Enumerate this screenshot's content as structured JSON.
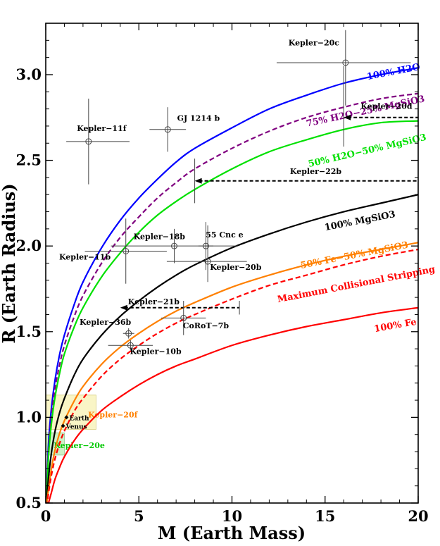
{
  "chart_data": {
    "type": "line",
    "title": "",
    "xlabel": "M (Earth Mass)",
    "ylabel": "R (Earth Radius)",
    "xlim": [
      0,
      20
    ],
    "ylim": [
      0.5,
      3.3
    ],
    "x_ticks": [
      0,
      5,
      10,
      15,
      20
    ],
    "x_tick_labels": [
      "0",
      "5",
      "10",
      "15",
      "20"
    ],
    "y_ticks": [
      0.5,
      1.0,
      1.5,
      2.0,
      2.5,
      3.0
    ],
    "y_tick_labels": [
      "0.5",
      "1.0",
      "1.5",
      "2.0",
      "2.5",
      "3.0"
    ],
    "series": [
      {
        "name": "100% H2O",
        "color": "#0000ff",
        "dash": "solid",
        "x": [
          0.05,
          0.15,
          0.3,
          0.5,
          0.75,
          1,
          1.5,
          2,
          3,
          4,
          5,
          6,
          7,
          8,
          10,
          12,
          14,
          16,
          18,
          20
        ],
        "y": [
          0.55,
          0.85,
          1.05,
          1.22,
          1.37,
          1.48,
          1.65,
          1.79,
          1.99,
          2.15,
          2.28,
          2.39,
          2.49,
          2.57,
          2.69,
          2.8,
          2.88,
          2.95,
          3.0,
          3.04
        ],
        "label_xy": [
          18.7,
          3.0
        ],
        "label_angle": -11
      },
      {
        "name": "75% H2O−25% MgSiO3",
        "color": "#800080",
        "dash": "dashed",
        "x": [
          0.05,
          0.15,
          0.3,
          0.5,
          0.75,
          1,
          1.5,
          2,
          3,
          4,
          5,
          6,
          7,
          8,
          10,
          12,
          14,
          16,
          18,
          20
        ],
        "y": [
          0.53,
          0.81,
          1.0,
          1.17,
          1.31,
          1.42,
          1.58,
          1.71,
          1.9,
          2.05,
          2.17,
          2.28,
          2.37,
          2.45,
          2.57,
          2.67,
          2.75,
          2.81,
          2.86,
          2.89
        ],
        "label_xy": [
          17.2,
          2.77
        ],
        "label_angle": -12
      },
      {
        "name": "50% H2O−50% MgSiO3",
        "color": "#00e000",
        "dash": "solid",
        "x": [
          0.05,
          0.15,
          0.3,
          0.5,
          0.75,
          1,
          1.5,
          2,
          3,
          4,
          5,
          6,
          7,
          8,
          10,
          12,
          14,
          16,
          18,
          20
        ],
        "y": [
          0.52,
          0.78,
          0.96,
          1.12,
          1.26,
          1.37,
          1.52,
          1.64,
          1.82,
          1.96,
          2.08,
          2.18,
          2.26,
          2.33,
          2.45,
          2.55,
          2.62,
          2.68,
          2.72,
          2.73
        ],
        "label_xy": [
          17.3,
          2.54
        ],
        "label_angle": -13
      },
      {
        "name": "100% MgSiO3",
        "color": "#000000",
        "dash": "solid",
        "x": [
          0.05,
          0.15,
          0.3,
          0.5,
          0.75,
          1,
          1.5,
          2,
          3,
          4,
          5,
          6,
          7,
          8,
          10,
          12,
          14,
          16,
          18,
          20
        ],
        "y": [
          0.5,
          0.65,
          0.79,
          0.92,
          1.03,
          1.11,
          1.24,
          1.34,
          1.48,
          1.59,
          1.68,
          1.76,
          1.83,
          1.89,
          1.99,
          2.07,
          2.14,
          2.2,
          2.25,
          2.3
        ],
        "label_xy": [
          16.9,
          2.13
        ],
        "label_angle": -11
      },
      {
        "name": "50% Fe−50% MgSiO3",
        "color": "#ff8000",
        "dash": "solid",
        "x": [
          0.05,
          0.15,
          0.3,
          0.5,
          0.75,
          1,
          1.5,
          2,
          3,
          4,
          5,
          6,
          7,
          8,
          10,
          12,
          14,
          16,
          18,
          20
        ],
        "y": [
          0.5,
          0.58,
          0.7,
          0.81,
          0.91,
          0.98,
          1.09,
          1.18,
          1.31,
          1.41,
          1.49,
          1.56,
          1.62,
          1.67,
          1.76,
          1.83,
          1.89,
          1.94,
          1.98,
          2.02
        ],
        "label_xy": [
          16.6,
          1.93
        ],
        "label_angle": -11
      },
      {
        "name": "Maximum Collisional Stripping",
        "color": "#ff0000",
        "dash": "dashed",
        "x": [
          0.05,
          0.15,
          0.3,
          0.5,
          0.75,
          1,
          1.5,
          2,
          3,
          4,
          5,
          6,
          7,
          8,
          10,
          12,
          14,
          16,
          18,
          20
        ],
        "y": [
          0.48,
          0.56,
          0.66,
          0.76,
          0.85,
          0.92,
          1.03,
          1.11,
          1.24,
          1.34,
          1.42,
          1.49,
          1.55,
          1.6,
          1.69,
          1.77,
          1.83,
          1.89,
          1.94,
          1.98
        ],
        "label_xy": [
          16.7,
          1.76
        ],
        "label_angle": -11
      },
      {
        "name": "100% Fe",
        "color": "#ff0000",
        "dash": "solid",
        "x": [
          0.05,
          0.15,
          0.3,
          0.5,
          0.75,
          1,
          1.5,
          2,
          3,
          4,
          5,
          6,
          7,
          8,
          10,
          12,
          14,
          16,
          18,
          20
        ],
        "y": [
          0.44,
          0.5,
          0.56,
          0.64,
          0.71,
          0.77,
          0.86,
          0.93,
          1.04,
          1.12,
          1.19,
          1.25,
          1.3,
          1.34,
          1.42,
          1.48,
          1.53,
          1.57,
          1.61,
          1.64
        ],
        "label_xy": [
          18.8,
          1.52
        ],
        "label_angle": -10
      }
    ],
    "planets": [
      {
        "name": "Kepler−20c",
        "m": 16.1,
        "r": 3.07,
        "m_err": [
          3.7,
          3.5
        ],
        "r_err": [
          0.25,
          0.19
        ],
        "label_xy": [
          14.4,
          3.17
        ]
      },
      {
        "name": "Kepler−11f",
        "m": 2.3,
        "r": 2.61,
        "m_err": [
          1.2,
          2.2
        ],
        "r_err": [
          0.25,
          0.25
        ],
        "label_xy": [
          3.0,
          2.67
        ]
      },
      {
        "name": "GJ 1214 b",
        "m": 6.55,
        "r": 2.68,
        "m_err": [
          0.98,
          0.98
        ],
        "r_err": [
          0.13,
          0.13
        ],
        "label_xy": [
          8.2,
          2.73
        ]
      },
      {
        "name": "Kepler−18b",
        "m": 6.9,
        "r": 2.0,
        "m_err": [
          3.4,
          3.4
        ],
        "r_err": [
          0.1,
          0.1
        ],
        "label_xy": [
          6.1,
          2.04
        ]
      },
      {
        "name": "55 Cnc e",
        "m": 8.6,
        "r": 2.0,
        "m_err": [
          0.4,
          0.4
        ],
        "r_err": [
          0.14,
          0.14
        ],
        "label_xy": [
          9.6,
          2.05
        ]
      },
      {
        "name": "Kepler−11b",
        "m": 4.3,
        "r": 1.97,
        "m_err": [
          2.2,
          2.2
        ],
        "r_err": [
          0.19,
          0.19
        ],
        "label_xy": [
          2.1,
          1.92
        ]
      },
      {
        "name": "Kepler−20b",
        "m": 8.7,
        "r": 1.91,
        "m_err": [
          2.2,
          2.1
        ],
        "r_err": [
          0.12,
          0.21
        ],
        "label_xy": [
          10.2,
          1.86
        ]
      },
      {
        "name": "Kepler−21b",
        "m": null,
        "r": 1.64,
        "upper_limit_m": 10.4,
        "r_err": [
          0.04,
          0.04
        ],
        "arrow_to": 4.0,
        "label_xy": [
          5.8,
          1.66
        ]
      },
      {
        "name": "CoRoT−7b",
        "m": 7.4,
        "r": 1.58,
        "m_err": [
          1.2,
          1.2
        ],
        "r_err": [
          0.1,
          0.1
        ],
        "label_xy": [
          8.6,
          1.52
        ]
      },
      {
        "name": "Kepler−36b",
        "m": 4.45,
        "r": 1.49,
        "m_err": [
          0.3,
          0.3
        ],
        "r_err": [
          0.03,
          0.03
        ],
        "label_xy": [
          3.2,
          1.54
        ]
      },
      {
        "name": "Kepler−10b",
        "m": 4.55,
        "r": 1.42,
        "m_err": [
          1.2,
          1.2
        ],
        "r_err": [
          0.03,
          0.03
        ],
        "label_xy": [
          5.9,
          1.37
        ]
      },
      {
        "name": "Kepler−22b",
        "m": null,
        "r": 2.38,
        "upper_limit_m": 20.0,
        "r_err": [
          0.13,
          0.13
        ],
        "arrow_to": 8.0,
        "label_xy": [
          14.5,
          2.42
        ]
      },
      {
        "name": "Kepler−20d",
        "m": null,
        "r": 2.75,
        "upper_limit_m": 20.0,
        "r_err": [
          0.17,
          0.3
        ],
        "arrow_to": 16.0,
        "label_xy": [
          18.3,
          2.8
        ]
      }
    ],
    "regions": [
      {
        "name": "Kepler−20f",
        "color": "#f8f4c0",
        "edge": "#d8cf80",
        "x": [
          0,
          2.7
        ],
        "y": [
          0.93,
          1.13
        ],
        "label_xy": [
          3.6,
          1.0
        ],
        "label_color": "#ff8000"
      },
      {
        "name": "Kepler−20e",
        "color": "#c8f0c0",
        "edge": "#90c890",
        "x": [
          0,
          1.0
        ],
        "y": [
          0.78,
          0.91
        ],
        "label_xy": [
          1.8,
          0.82
        ],
        "label_color": "#00c800"
      }
    ],
    "solar_system": [
      {
        "name": "Earth",
        "m": 1.0,
        "r": 1.0
      },
      {
        "name": "Venus",
        "m": 0.815,
        "r": 0.95
      }
    ]
  }
}
